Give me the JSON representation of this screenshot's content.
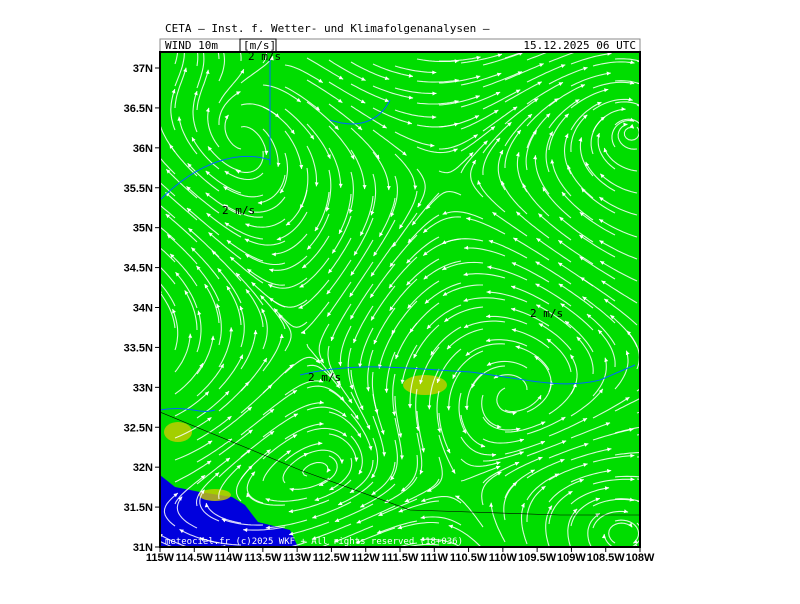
{
  "header": {
    "title": "CETA — Inst. f. Wetter- und Klimafolgenanalysen —",
    "field": "WIND 10m",
    "unit": "[m/s]",
    "valid_time": "15.12.2025 06 UTC"
  },
  "map": {
    "lat_labels": [
      "37N",
      "36.5N",
      "36N",
      "35.5N",
      "35N",
      "34.5N",
      "34N",
      "33.5N",
      "33N",
      "32.5N",
      "32N",
      "31.5N",
      "31N"
    ],
    "lon_labels": [
      "115W",
      "114.5W",
      "114W",
      "113.5W",
      "113W",
      "112.5W",
      "112W",
      "111.5W",
      "111W",
      "110.5W",
      "110W",
      "109.5W",
      "109W",
      "108.5W",
      "108W"
    ],
    "wind_labels": [
      "2 m/s",
      "2 m/s",
      "2 m/s",
      "2 m/s"
    ],
    "copyright": "meteociel.fr (c)2025 WKF + All rights reserved (18+036)"
  }
}
